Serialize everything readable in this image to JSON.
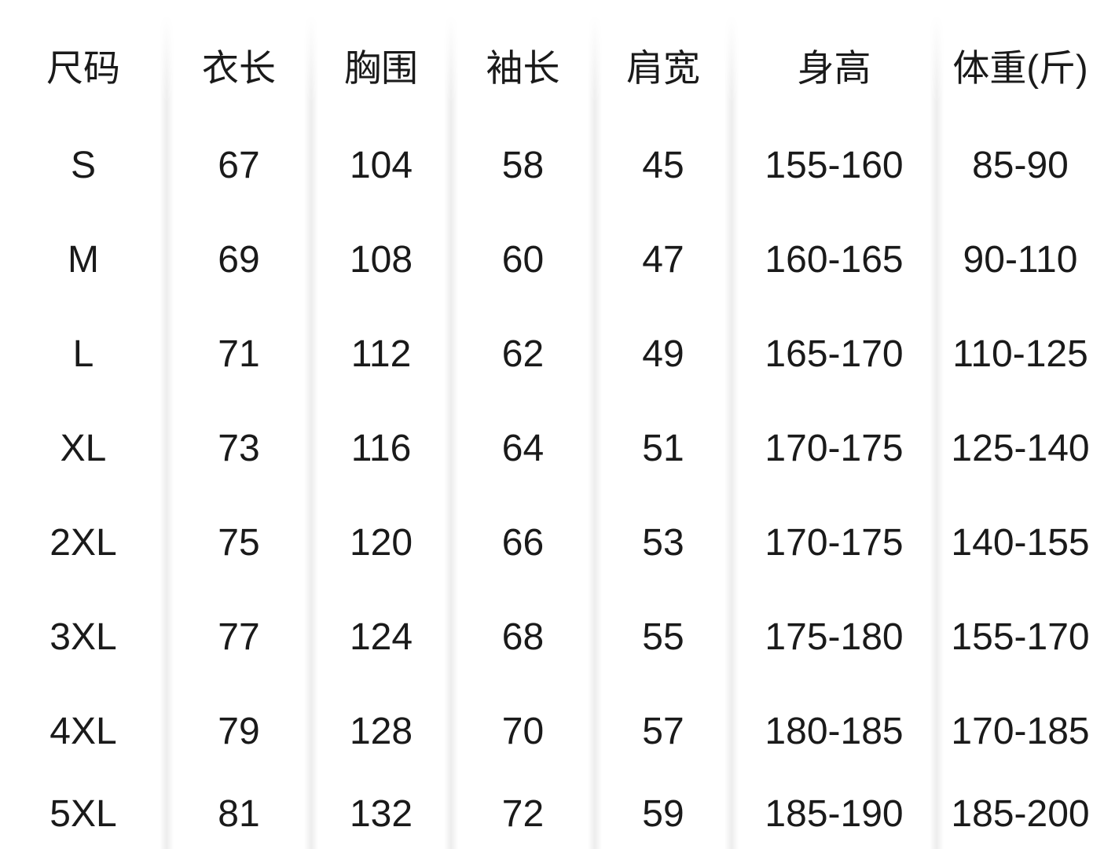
{
  "chart_data": {
    "type": "table",
    "columns": [
      "尺码",
      "衣长",
      "胸围",
      "袖长",
      "肩宽",
      "身高",
      "体重(斤)"
    ],
    "rows": [
      {
        "size": "S",
        "values": [
          67,
          104,
          58,
          45,
          "155-160",
          "85-90"
        ]
      },
      {
        "size": "M",
        "values": [
          69,
          108,
          60,
          47,
          "160-165",
          "90-110"
        ]
      },
      {
        "size": "L",
        "values": [
          71,
          112,
          62,
          49,
          "165-170",
          "110-125"
        ]
      },
      {
        "size": "XL",
        "values": [
          73,
          116,
          64,
          51,
          "170-175",
          "125-140"
        ]
      },
      {
        "size": "2XL",
        "values": [
          75,
          120,
          66,
          53,
          "170-175",
          "140-155"
        ]
      },
      {
        "size": "3XL",
        "values": [
          77,
          124,
          68,
          55,
          "175-180",
          "155-170"
        ]
      },
      {
        "size": "4XL",
        "values": [
          79,
          128,
          70,
          57,
          "180-185",
          "170-185"
        ]
      },
      {
        "size": "5XL",
        "values": [
          81,
          132,
          72,
          59,
          "185-190",
          "185-200"
        ]
      }
    ]
  },
  "colors": {
    "text": "#1a1a1a",
    "background": "#ffffff",
    "divider": "#ececec"
  }
}
